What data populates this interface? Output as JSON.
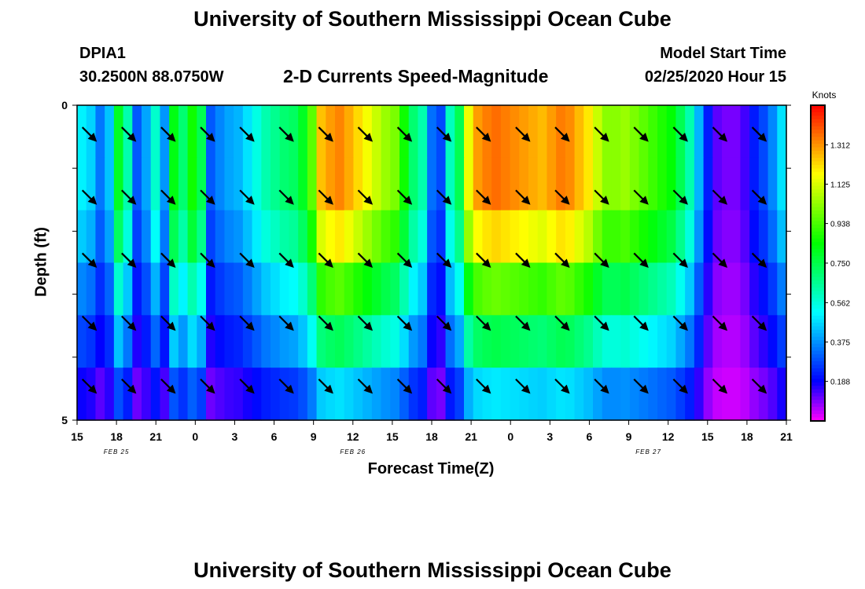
{
  "header": {
    "title_top": "University of Southern Mississippi Ocean Cube",
    "title_bottom": "University of Southern Mississippi Ocean Cube",
    "station_id": "DPIA1",
    "station_coords": "30.2500N 88.0750W",
    "model_label": "Model Start Time",
    "model_time": "02/25/2020 Hour 15"
  },
  "chart_data": {
    "type": "heatmap",
    "title": "2-D Currents Speed-Magnitude",
    "xlabel": "Forecast Time(Z)",
    "ylabel": "Depth (ft)",
    "x_tick_labels": [
      "15",
      "18",
      "21",
      "0",
      "3",
      "6",
      "9",
      "12",
      "15",
      "18",
      "21",
      "0",
      "3",
      "6",
      "9",
      "12",
      "15",
      "18",
      "21"
    ],
    "x_range_hours": [
      0,
      54
    ],
    "date_labels": [
      {
        "text": "FEB 25",
        "hour": 3
      },
      {
        "text": "FEB 26",
        "hour": 21
      },
      {
        "text": "FEB 27",
        "hour": 43.5
      }
    ],
    "y_tick_labels": [
      {
        "depth": 0,
        "label": "0"
      },
      {
        "depth": 5,
        "label": "5"
      }
    ],
    "y_range_ft": [
      0,
      5
    ],
    "depth_rows": 5,
    "speed_profile_top_layer": [
      0.5,
      0.46,
      0.34,
      0.44,
      0.8,
      0.62,
      0.3,
      0.4,
      0.58,
      0.38,
      0.82,
      0.7,
      0.86,
      0.74,
      0.3,
      0.36,
      0.4,
      0.42,
      0.48,
      0.55,
      0.62,
      0.66,
      0.7,
      0.72,
      0.8,
      0.96,
      1.25,
      1.3,
      1.33,
      1.28,
      1.22,
      1.16,
      1.1,
      1.04,
      1.0,
      0.86,
      0.7,
      0.62,
      0.33,
      0.28,
      0.6,
      0.74,
      1.15,
      1.3,
      1.34,
      1.36,
      1.34,
      1.32,
      1.3,
      1.28,
      1.26,
      1.3,
      1.34,
      1.32,
      1.26,
      1.2,
      1.1,
      1.02,
      1.02,
      1.04,
      1.0,
      0.96,
      0.92,
      0.88,
      0.84,
      0.74,
      0.62,
      0.42,
      0.22,
      0.12,
      0.1,
      0.1,
      0.14,
      0.22,
      0.28,
      0.36,
      0.48
    ],
    "depth_factors": [
      1.0,
      1.0,
      0.9,
      0.72,
      0.55,
      0.36
    ],
    "quiver_hours": [
      1,
      4,
      7,
      10,
      13,
      16,
      19,
      22,
      25,
      28,
      31,
      34,
      37,
      40,
      43,
      46,
      49,
      52
    ],
    "quiver_depths_ft": [
      0.25,
      1.25,
      2.25,
      3.25,
      4.25
    ],
    "colorbar": {
      "unit": "Knots",
      "min": 0.0,
      "max": 1.5,
      "ticks": [
        "1.312",
        "1.125",
        "0.938",
        "0.750",
        "0.562",
        "0.375",
        "0.188"
      ]
    }
  }
}
